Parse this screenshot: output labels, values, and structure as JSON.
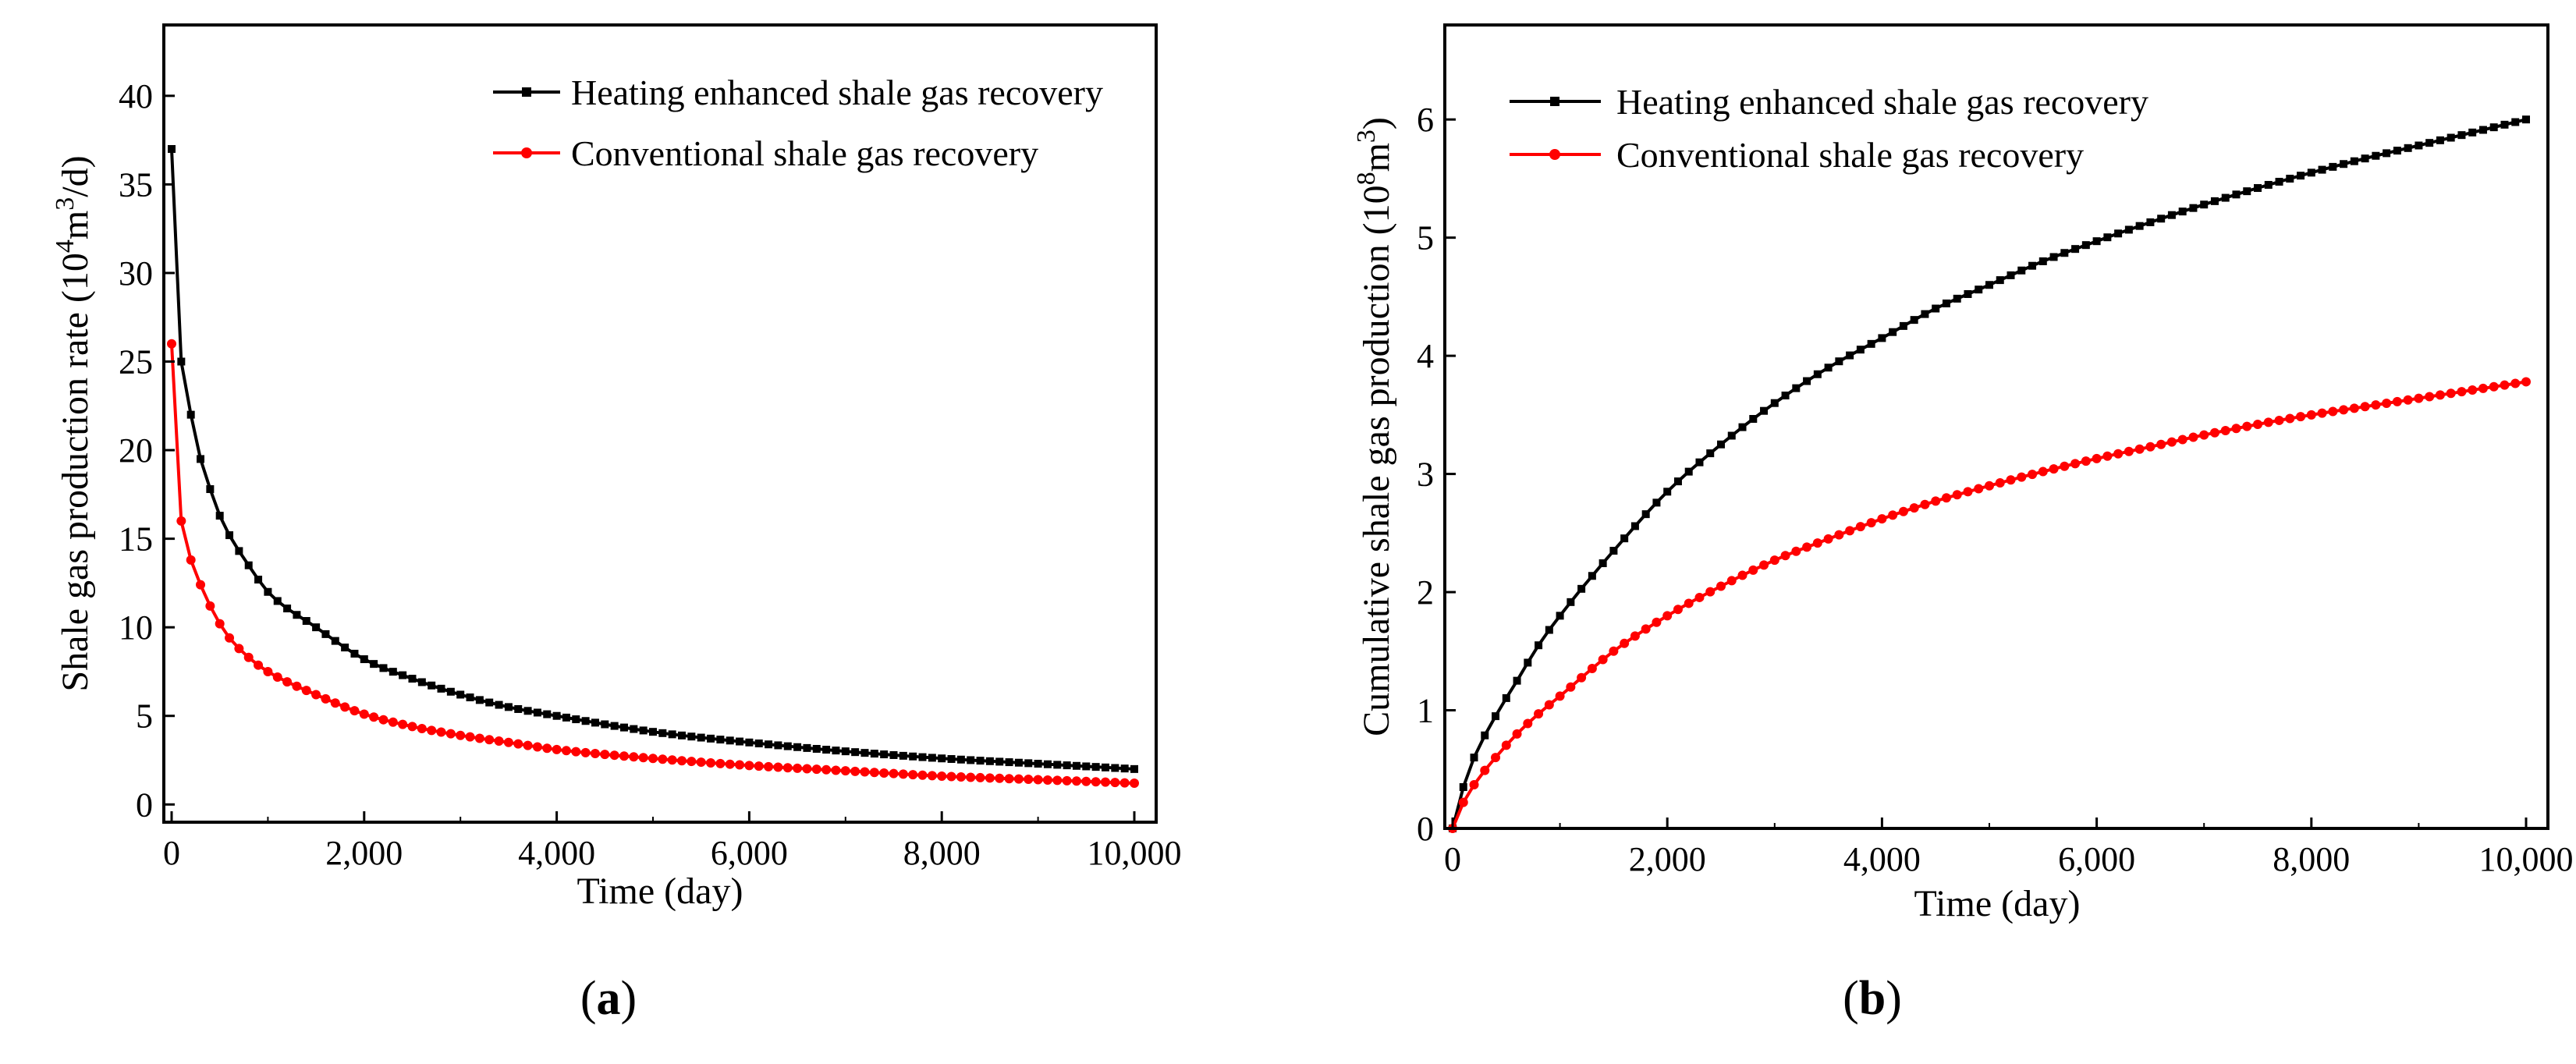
{
  "chart_data": [
    {
      "type": "line",
      "panel_label": "a",
      "xlabel": "Time (day)",
      "ylabel_prefix": "Shale gas production rate (10",
      "ylabel_sup1": "4",
      "ylabel_mid": "m",
      "ylabel_sup2": "3",
      "ylabel_suffix": "/d)",
      "xlim": [
        0,
        10000
      ],
      "ylim": [
        -1,
        44
      ],
      "xticks": [
        0,
        2000,
        4000,
        6000,
        8000,
        10000
      ],
      "xtick_labels": [
        "0",
        "2,000",
        "4,000",
        "6,000",
        "8,000",
        "10,000"
      ],
      "yticks": [
        0,
        5,
        10,
        15,
        20,
        25,
        30,
        35,
        40
      ],
      "ytick_labels": [
        "0",
        "5",
        "10",
        "15",
        "20",
        "25",
        "30",
        "35",
        "40"
      ],
      "legend_position": "top-right",
      "series": [
        {
          "name": "Heating enhanced shale gas recovery",
          "color": "#000000",
          "x": [
            0,
            50,
            100,
            200,
            300,
            400,
            500,
            600,
            800,
            1000,
            1500,
            2000,
            2500,
            3000,
            3500,
            4000,
            5000,
            6000,
            7000,
            8000,
            9000,
            10000
          ],
          "y": [
            37,
            30,
            25,
            22,
            19.5,
            17.8,
            16.3,
            15.2,
            13.5,
            12,
            10,
            8.2,
            7.1,
            6.2,
            5.5,
            5.0,
            4.1,
            3.5,
            3.0,
            2.6,
            2.3,
            2.0
          ]
        },
        {
          "name": "Conventional shale gas recovery",
          "color": "#ff0000",
          "x": [
            0,
            50,
            100,
            200,
            300,
            400,
            500,
            600,
            800,
            1000,
            1500,
            2000,
            2500,
            3000,
            3500,
            4000,
            5000,
            6000,
            7000,
            8000,
            9000,
            10000
          ],
          "y": [
            26,
            20,
            16,
            13.8,
            12.4,
            11.2,
            10.2,
            9.4,
            8.3,
            7.5,
            6.2,
            5.1,
            4.4,
            3.9,
            3.5,
            3.1,
            2.6,
            2.2,
            1.9,
            1.6,
            1.4,
            1.2
          ]
        }
      ]
    },
    {
      "type": "line",
      "panel_label": "b",
      "xlabel": "Time (day)",
      "ylabel_prefix": "Cumulative shale gas production (10",
      "ylabel_sup1": "8",
      "ylabel_mid": "m",
      "ylabel_sup2": "3",
      "ylabel_suffix": ")",
      "xlim": [
        0,
        10000
      ],
      "ylim": [
        0,
        6.8
      ],
      "xticks": [
        0,
        2000,
        4000,
        6000,
        8000,
        10000
      ],
      "xtick_labels": [
        "0",
        "2,000",
        "4,000",
        "6,000",
        "8,000",
        "10,000"
      ],
      "yticks": [
        0,
        1,
        2,
        3,
        4,
        5,
        6
      ],
      "ytick_labels": [
        "0",
        "1",
        "2",
        "3",
        "4",
        "5",
        "6"
      ],
      "legend_position": "top-left",
      "series": [
        {
          "name": "Heating enhanced shale gas recovery",
          "color": "#000000",
          "x": [
            0,
            100,
            200,
            400,
            600,
            800,
            1000,
            1500,
            2000,
            2500,
            3000,
            3500,
            4000,
            4500,
            5000,
            5500,
            6000,
            6500,
            7000,
            7500,
            8000,
            8500,
            9000,
            9500,
            10000
          ],
          "y": [
            0,
            0.35,
            0.6,
            0.95,
            1.25,
            1.55,
            1.8,
            2.35,
            2.85,
            3.25,
            3.6,
            3.9,
            4.15,
            4.4,
            4.6,
            4.8,
            4.97,
            5.13,
            5.28,
            5.42,
            5.55,
            5.67,
            5.78,
            5.89,
            6.0
          ]
        },
        {
          "name": "Conventional shale gas recovery",
          "color": "#ff0000",
          "x": [
            0,
            100,
            200,
            400,
            600,
            800,
            1000,
            1500,
            2000,
            2500,
            3000,
            3500,
            4000,
            4500,
            5000,
            5500,
            6000,
            6500,
            7000,
            7500,
            8000,
            8500,
            9000,
            9500,
            10000
          ],
          "y": [
            0,
            0.22,
            0.37,
            0.6,
            0.8,
            0.97,
            1.12,
            1.5,
            1.8,
            2.05,
            2.27,
            2.45,
            2.62,
            2.77,
            2.9,
            3.02,
            3.13,
            3.23,
            3.33,
            3.42,
            3.5,
            3.57,
            3.64,
            3.71,
            3.78
          ]
        }
      ]
    }
  ]
}
